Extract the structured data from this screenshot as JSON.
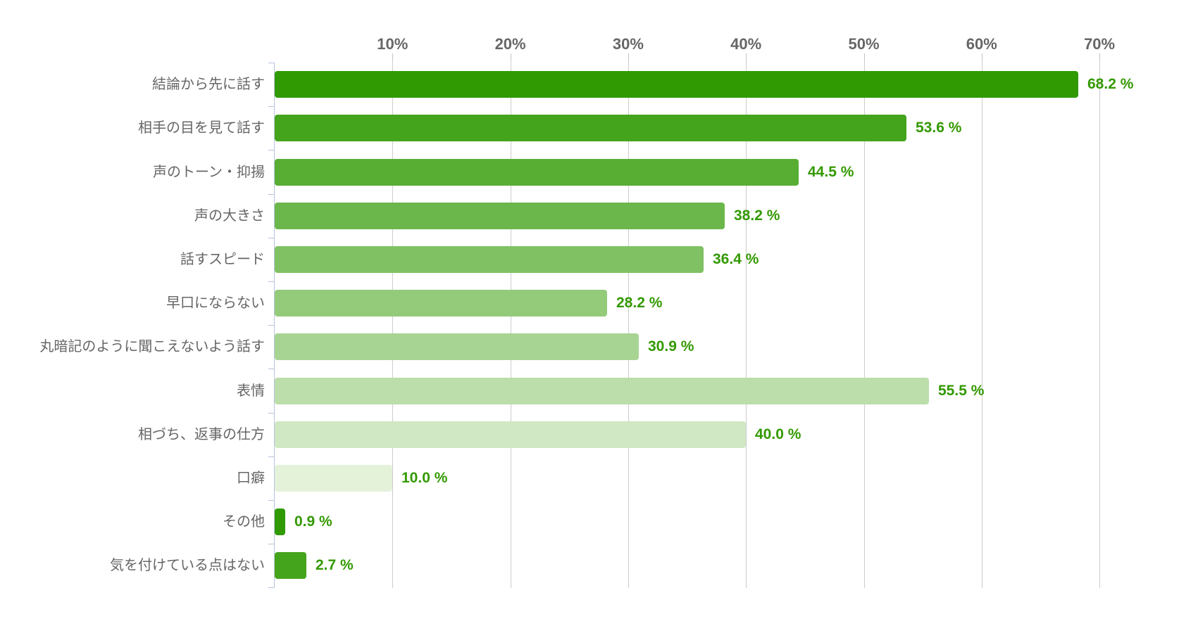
{
  "chart_data": {
    "type": "bar",
    "orientation": "horizontal",
    "title": "",
    "categories": [
      "結論から先に話す",
      "相手の目を見て話す",
      "声のトーン・抑揚",
      "声の大きさ",
      "話すスピード",
      "早口にならない",
      "丸暗記のように聞こえないよう話す",
      "表情",
      "相づち、返事の仕方",
      "口癖",
      "その他",
      "気を付けている点はない"
    ],
    "values": [
      68.2,
      53.6,
      44.5,
      38.2,
      36.4,
      28.2,
      30.9,
      55.5,
      40.0,
      10.0,
      0.9,
      2.7
    ],
    "value_labels": [
      "68.2 %",
      "53.6 %",
      "44.5 %",
      "38.2 %",
      "36.4 %",
      "28.2 %",
      "30.9 %",
      "55.5 %",
      "40.0 %",
      "10.0 %",
      "0.9 %",
      "2.7 %"
    ],
    "bar_colors": [
      "#309a03",
      "#44a41b",
      "#58ad33",
      "#6cb74b",
      "#80c163",
      "#94cb7b",
      "#a8d493",
      "#bcdeab",
      "#d0e8c3",
      "#e4f2da",
      "#309a03",
      "#44a41b"
    ],
    "x_ticks": [
      "10%",
      "20%",
      "30%",
      "40%",
      "50%",
      "60%",
      "70%"
    ],
    "x_tick_values": [
      10,
      20,
      30,
      40,
      50,
      60,
      70
    ],
    "xlim": [
      0,
      76
    ],
    "grid": true,
    "legend": false,
    "colors": {
      "value_label": "#339900",
      "x_axis_label": "#666666",
      "category_label": "#666666",
      "gridline": "#cccccc",
      "x_axis_tick": "#c3c3c3",
      "category_axis": "#b5c4da",
      "background": "#ffffff"
    }
  }
}
